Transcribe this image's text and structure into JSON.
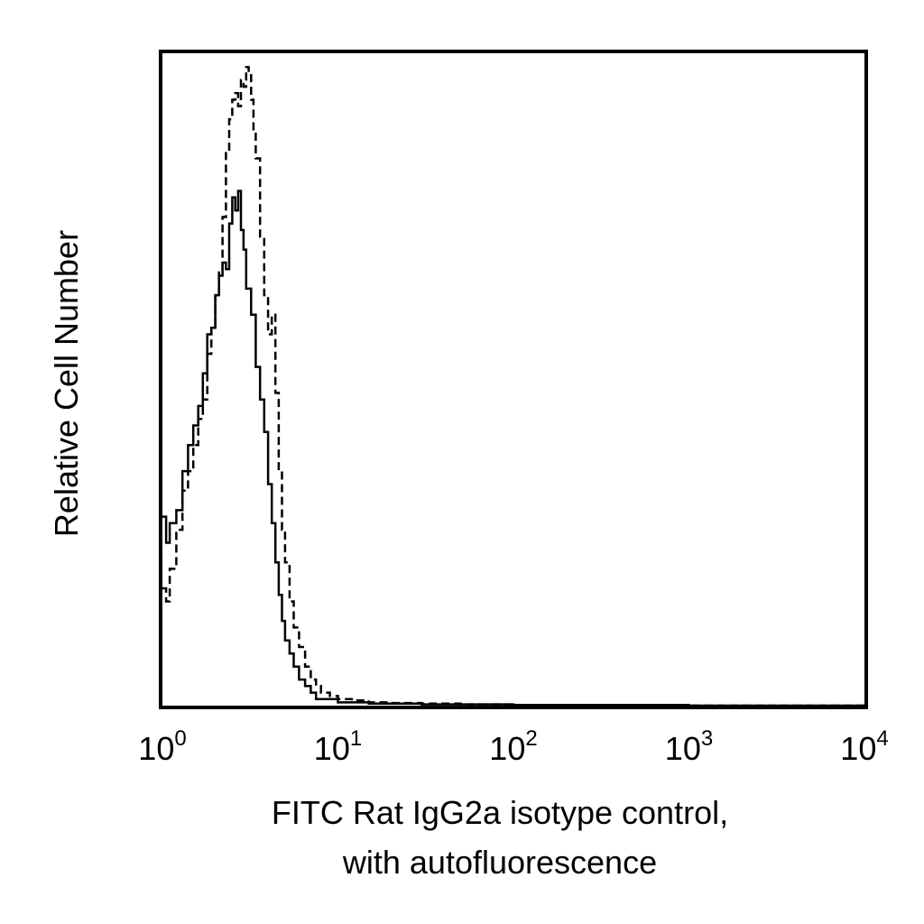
{
  "chart_data": {
    "type": "line",
    "title": "",
    "xlabel": [
      "FITC Rat IgG2a isotype control,",
      "with autofluorescence"
    ],
    "ylabel": "Relative Cell Number",
    "x_scale": "log",
    "xlim": [
      1,
      10000
    ],
    "ylim": [
      0,
      100
    ],
    "grid": false,
    "x_ticks": [
      {
        "value": 1,
        "base": "10",
        "exp": "0"
      },
      {
        "value": 10,
        "base": "10",
        "exp": "1"
      },
      {
        "value": 100,
        "base": "10",
        "exp": "2"
      },
      {
        "value": 1000,
        "base": "10",
        "exp": "3"
      },
      {
        "value": 10000,
        "base": "10",
        "exp": "4"
      }
    ],
    "series": [
      {
        "style": "solid",
        "x": [
          1.0,
          1.05,
          1.1,
          1.2,
          1.3,
          1.4,
          1.5,
          1.6,
          1.7,
          1.8,
          1.9,
          2.0,
          2.1,
          2.2,
          2.3,
          2.4,
          2.5,
          2.6,
          2.7,
          2.8,
          2.9,
          3.0,
          3.2,
          3.4,
          3.6,
          3.8,
          4.0,
          4.2,
          4.4,
          4.6,
          4.8,
          5.0,
          5.3,
          5.6,
          6.0,
          6.5,
          7.0,
          7.5,
          8.0,
          9.0,
          10.0,
          12.0,
          15.0,
          20.0,
          30.0,
          50.0,
          100.0,
          200.0,
          1000.0,
          10000.0
        ],
        "y": [
          29,
          25,
          28,
          30,
          36,
          40,
          43,
          46,
          51,
          57,
          58,
          63,
          66,
          68,
          67,
          74,
          78,
          76,
          79,
          73,
          70,
          64,
          60,
          52,
          47,
          42,
          34,
          28,
          22,
          17,
          13,
          10,
          8,
          6,
          4,
          3,
          2,
          1,
          1,
          1,
          0.5,
          0.5,
          0.3,
          0.3,
          0.2,
          0.2,
          0.1,
          0.1,
          0,
          0
        ]
      },
      {
        "style": "dashed",
        "x": [
          1.0,
          1.05,
          1.1,
          1.2,
          1.3,
          1.4,
          1.5,
          1.6,
          1.7,
          1.8,
          1.9,
          2.0,
          2.1,
          2.2,
          2.3,
          2.4,
          2.5,
          2.6,
          2.7,
          2.8,
          2.9,
          3.0,
          3.1,
          3.2,
          3.3,
          3.4,
          3.6,
          3.8,
          4.0,
          4.2,
          4.4,
          4.6,
          4.8,
          5.0,
          5.3,
          5.6,
          6.0,
          6.5,
          7.0,
          7.5,
          8.0,
          9.0,
          10.0,
          12.0,
          15.0,
          20.0,
          30.0,
          50.0,
          100.0,
          200.0,
          1000.0,
          10000.0
        ],
        "y": [
          18,
          16,
          21,
          27,
          33,
          36,
          40,
          44,
          47,
          54,
          58,
          63,
          67,
          75,
          85,
          90,
          93,
          94,
          92,
          96,
          95,
          98,
          97,
          93,
          88,
          84,
          72,
          63,
          57,
          60,
          48,
          36,
          27,
          22,
          16,
          12,
          9,
          6,
          4,
          3,
          2,
          1.5,
          1,
          0.8,
          0.5,
          0.4,
          0.3,
          0.2,
          0.1,
          0.1,
          0,
          0
        ]
      }
    ]
  }
}
